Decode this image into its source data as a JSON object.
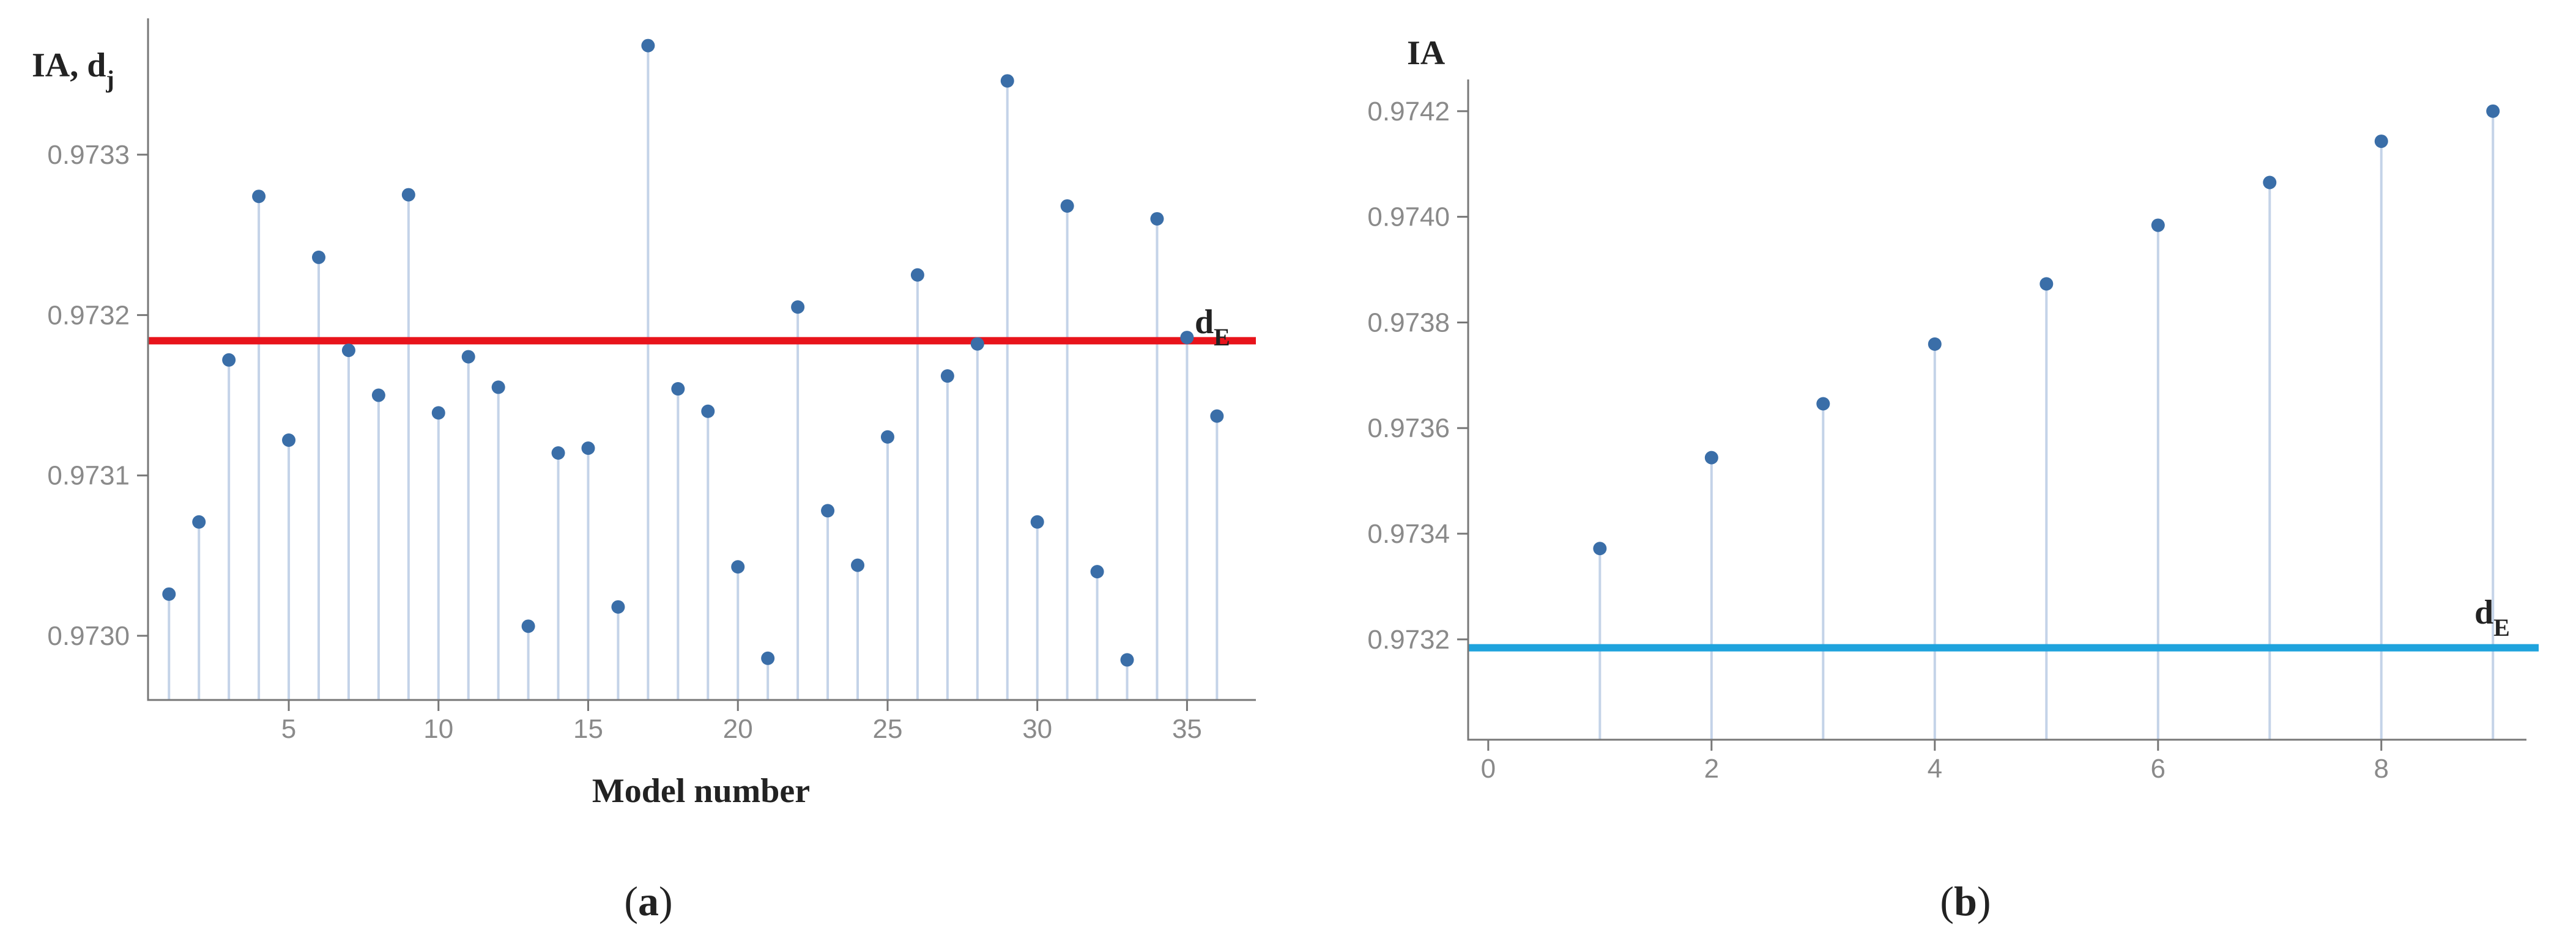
{
  "chart_data": [
    {
      "panel": "a",
      "type": "scatter",
      "style": "stem",
      "ylabel": "IA, d",
      "ylabel_sub": "j",
      "xlabel": "Model number",
      "x_ticks": [
        "5",
        "10",
        "15",
        "20",
        "25",
        "30",
        "35"
      ],
      "y_ticks": [
        "0.9730",
        "0.9731",
        "0.9732",
        "0.9733"
      ],
      "xlim": [
        0.3,
        37.3
      ],
      "ylim": [
        0.97296,
        0.973385
      ],
      "x": [
        1,
        2,
        3,
        4,
        5,
        6,
        7,
        8,
        9,
        10,
        11,
        12,
        13,
        14,
        15,
        16,
        17,
        18,
        19,
        20,
        21,
        22,
        23,
        24,
        25,
        26,
        27,
        28,
        29,
        30,
        31,
        32,
        33,
        34,
        35,
        36
      ],
      "values": [
        0.973026,
        0.973071,
        0.973172,
        0.973274,
        0.973122,
        0.973236,
        0.973178,
        0.97315,
        0.973275,
        0.973139,
        0.973174,
        0.973155,
        0.973006,
        0.973114,
        0.973117,
        0.973018,
        0.973368,
        0.973154,
        0.97314,
        0.973043,
        0.972986,
        0.973205,
        0.973078,
        0.973044,
        0.973124,
        0.973225,
        0.973162,
        0.973182,
        0.973346,
        0.973071,
        0.973268,
        0.97304,
        0.972985,
        0.97326,
        0.973186,
        0.973137
      ],
      "reference_line": {
        "label": "d",
        "label_sub": "E",
        "value": 0.973184,
        "color": "#e8131b"
      },
      "point_color": "#3a6ea8",
      "stem_color": "#c4d3e8",
      "caption": "a"
    },
    {
      "panel": "b",
      "type": "scatter",
      "style": "stem",
      "ylabel": "IA",
      "xlabel": "",
      "x_ticks": [
        "0",
        "2",
        "4",
        "6",
        "8"
      ],
      "y_ticks": [
        "0.9732",
        "0.9734",
        "0.9736",
        "0.9738",
        "0.9740",
        "0.9742"
      ],
      "xlim": [
        -0.18,
        9.3
      ],
      "ylim": [
        0.97301,
        0.97426
      ],
      "x": [
        1,
        2,
        3,
        4,
        5,
        6,
        7,
        8,
        9
      ],
      "values": [
        0.973372,
        0.973544,
        0.973646,
        0.973759,
        0.973873,
        0.973984,
        0.974065,
        0.974143,
        0.9742
      ],
      "reference_line": {
        "label": "d",
        "label_sub": "E",
        "value": 0.973184,
        "color": "#1fa3dd"
      },
      "point_color": "#3a6ea8",
      "stem_color": "#c4d3e8",
      "caption": "b"
    }
  ]
}
